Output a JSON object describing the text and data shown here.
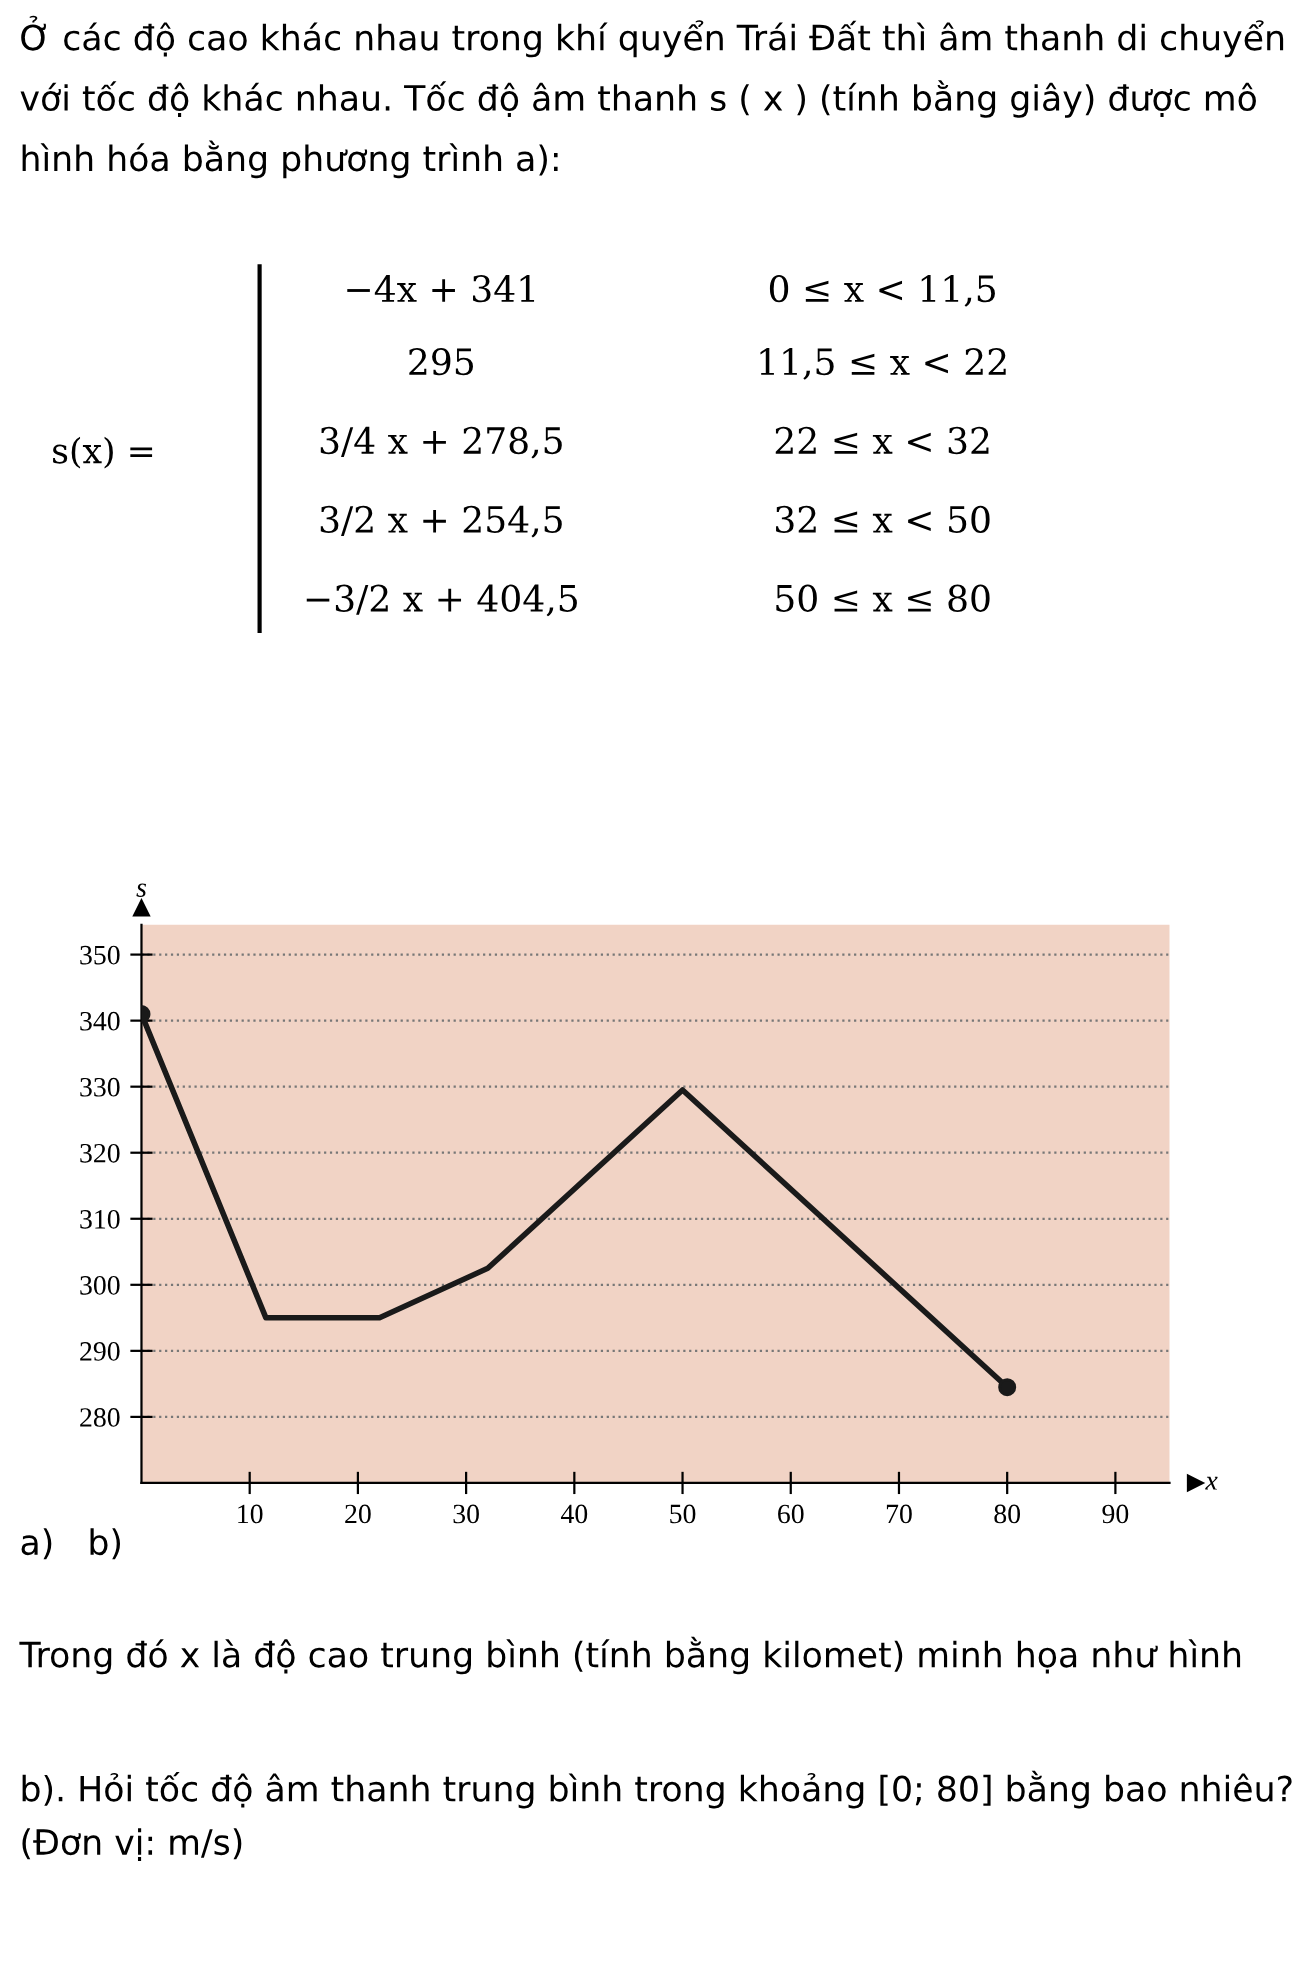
{
  "chart_data": {
    "type": "line",
    "title": "Ở các độ cao khác nhau trong khí quyển Trái Đất thì âm thanh di chuyển với tốc độ khác nhau. Tốc độ âm thanh s ( x ) (tính bằng giây) được mô hình hóa bằng phương trình a):",
    "annotations": [
      "s(x) =",
      "−4x + 341",
      "0 ≤ x < 11,5",
      "295",
      "11,5 ≤ x < 22",
      "3/4 x + 278,5",
      "22 ≤ x < 32",
      "3/2 x + 254,5",
      "32 ≤ x < 50",
      "−3/2 x + 404,5",
      "50 ≤ x ≤ 80",
      "a)   b)",
      "Trong đó x là độ cao trung bình (tính bằng kilomet) minh họa như hình",
      "b). Hỏi tốc độ âm thanh trung bình trong khoảng [0; 80] bằng bao nhiêu? (Đơn vị: m/s)"
    ],
    "xlabel": "x",
    "ylabel": "s",
    "series": [
      {
        "color": "#1a1a1a",
        "marker": "none",
        "x": [
          0,
          11.5,
          22,
          32,
          50,
          80
        ],
        "values": [
          341,
          295,
          295,
          302.5,
          329.5,
          284.5
        ]
      },
      {
        "type": "scatter",
        "color": "#1a1a1a",
        "marker": "circle",
        "x": [
          0,
          80
        ],
        "values": [
          341,
          284.5
        ]
      }
    ],
    "xlim": [
      0,
      95
    ],
    "ylim": [
      270,
      354.5
    ],
    "xticks": [
      10,
      20,
      30,
      40,
      50,
      60,
      70,
      80,
      90
    ],
    "yticks": [
      280,
      290,
      300,
      310,
      320,
      330,
      340,
      350
    ],
    "grid": "y",
    "legend": false
  }
}
